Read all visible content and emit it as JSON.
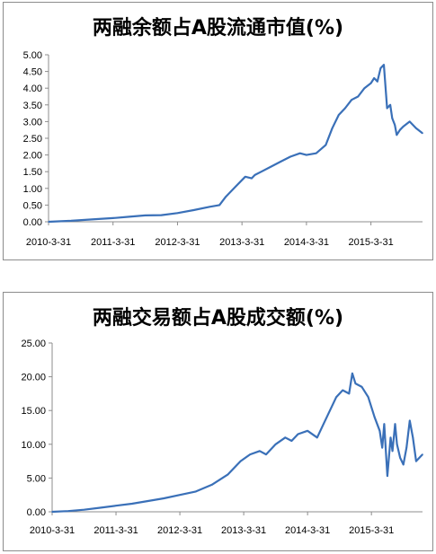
{
  "chart_data": [
    {
      "type": "line",
      "title": "两融余额占A股流通市值(%)",
      "xlabel": "",
      "ylabel": "",
      "x_ticks": [
        "2010-3-31",
        "2011-3-31",
        "2012-3-31",
        "2013-3-31",
        "2014-3-31",
        "2015-3-31"
      ],
      "y_ticks": [
        "0.00",
        "0.50",
        "1.00",
        "1.50",
        "2.00",
        "2.50",
        "3.00",
        "3.50",
        "4.00",
        "4.50",
        "5.00"
      ],
      "ylim": [
        0,
        5
      ],
      "grid": false,
      "legend": "none",
      "x_range": [
        2010.25,
        2016.05
      ],
      "series": [
        {
          "color": "#3a70b8",
          "x": [
            2010.25,
            2010.6,
            2011.0,
            2011.25,
            2011.5,
            2011.75,
            2012.0,
            2012.25,
            2012.5,
            2012.75,
            2012.9,
            2013.0,
            2013.15,
            2013.3,
            2013.4,
            2013.45,
            2013.55,
            2013.7,
            2013.85,
            2014.0,
            2014.15,
            2014.25,
            2014.4,
            2014.55,
            2014.65,
            2014.75,
            2014.85,
            2014.95,
            2015.05,
            2015.15,
            2015.25,
            2015.3,
            2015.35,
            2015.4,
            2015.45,
            2015.5,
            2015.55,
            2015.58,
            2015.62,
            2015.65,
            2015.7,
            2015.75,
            2015.85,
            2015.95,
            2016.05
          ],
          "values": [
            0.0,
            0.03,
            0.08,
            0.11,
            0.15,
            0.19,
            0.2,
            0.26,
            0.35,
            0.45,
            0.5,
            0.75,
            1.05,
            1.35,
            1.3,
            1.4,
            1.5,
            1.65,
            1.8,
            1.95,
            2.05,
            2.0,
            2.05,
            2.3,
            2.8,
            3.2,
            3.4,
            3.65,
            3.75,
            4.0,
            4.15,
            4.3,
            4.2,
            4.6,
            4.7,
            3.4,
            3.5,
            3.1,
            2.9,
            2.6,
            2.75,
            2.85,
            3.0,
            2.8,
            2.65
          ]
        }
      ]
    },
    {
      "type": "line",
      "title": "两融交易额占A股成交额(%)",
      "xlabel": "",
      "ylabel": "",
      "x_ticks": [
        "2010-3-31",
        "2011-3-31",
        "2012-3-31",
        "2013-3-31",
        "2014-3-31",
        "2015-3-31"
      ],
      "y_ticks": [
        "0.00",
        "5.00",
        "10.00",
        "15.00",
        "20.00",
        "25.00"
      ],
      "ylim": [
        0,
        25
      ],
      "grid": false,
      "legend": "none",
      "x_range": [
        2010.25,
        2016.05
      ],
      "series": [
        {
          "color": "#3a70b8",
          "x": [
            2010.25,
            2010.5,
            2010.75,
            2011.0,
            2011.25,
            2011.5,
            2011.75,
            2012.0,
            2012.25,
            2012.5,
            2012.75,
            2013.0,
            2013.2,
            2013.35,
            2013.5,
            2013.6,
            2013.75,
            2013.9,
            2014.0,
            2014.1,
            2014.25,
            2014.4,
            2014.5,
            2014.6,
            2014.7,
            2014.8,
            2014.9,
            2014.95,
            2015.0,
            2015.1,
            2015.2,
            2015.3,
            2015.38,
            2015.42,
            2015.45,
            2015.5,
            2015.55,
            2015.58,
            2015.62,
            2015.65,
            2015.7,
            2015.75,
            2015.8,
            2015.85,
            2015.9,
            2015.95,
            2016.05
          ],
          "values": [
            0.0,
            0.1,
            0.3,
            0.6,
            0.9,
            1.2,
            1.6,
            2.0,
            2.5,
            3.0,
            4.0,
            5.5,
            7.5,
            8.5,
            9.0,
            8.5,
            10.0,
            11.0,
            10.5,
            11.5,
            12.0,
            11.0,
            13.0,
            15.0,
            17.0,
            18.0,
            17.5,
            20.5,
            19.0,
            18.5,
            17.0,
            14.0,
            12.0,
            9.5,
            13.0,
            5.3,
            11.0,
            9.0,
            13.0,
            10.0,
            8.0,
            7.0,
            9.5,
            13.5,
            11.0,
            7.5,
            8.5
          ]
        }
      ]
    }
  ]
}
